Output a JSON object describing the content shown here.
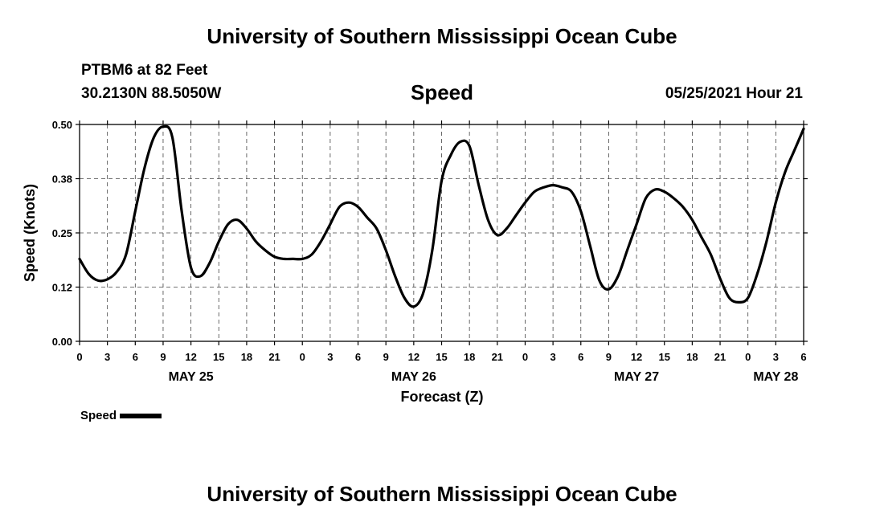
{
  "header": {
    "title": "University of Southern Mississippi Ocean Cube",
    "station": "PTBM6 at 82 Feet",
    "coords": "30.2130N  88.5050W",
    "chart_title": "Speed",
    "run_time": "05/25/2021 Hour 21"
  },
  "footer": {
    "title": "University of Southern Mississippi Ocean Cube"
  },
  "legend": {
    "label": "Speed"
  },
  "chart_data": {
    "type": "line",
    "title": "Speed",
    "xlabel": "Forecast (Z)",
    "ylabel": "Speed (Knots)",
    "ylim": [
      0,
      0.5
    ],
    "y_ticks": [
      "0.00",
      "0.12",
      "0.25",
      "0.38",
      "0.50"
    ],
    "x_range_hours": [
      0,
      78
    ],
    "x_tick_labels": [
      "0",
      "3",
      "6",
      "9",
      "12",
      "15",
      "18",
      "21",
      "0",
      "3",
      "6",
      "9",
      "12",
      "15",
      "18",
      "21",
      "0",
      "3",
      "6",
      "9",
      "12",
      "15",
      "18",
      "21",
      "0",
      "3",
      "6"
    ],
    "days": [
      {
        "label": "MAY 25",
        "hour": 12
      },
      {
        "label": "MAY 26",
        "hour": 36
      },
      {
        "label": "MAY 27",
        "hour": 60
      },
      {
        "label": "MAY 28",
        "hour": 75
      }
    ],
    "grid": true,
    "series": [
      {
        "name": "Speed",
        "color": "#000000",
        "x_hours": [
          0,
          1,
          2,
          3,
          4,
          5,
          6,
          7,
          8,
          9,
          10,
          11,
          12,
          13,
          14,
          15,
          16,
          17,
          18,
          19,
          20,
          21,
          22,
          23,
          24,
          25,
          26,
          27,
          28,
          29,
          30,
          31,
          32,
          33,
          34,
          35,
          36,
          37,
          38,
          39,
          40,
          41,
          42,
          43,
          44,
          45,
          46,
          47,
          48,
          49,
          50,
          51,
          52,
          53,
          54,
          55,
          56,
          57,
          58,
          59,
          60,
          61,
          62,
          63,
          64,
          65,
          66,
          67,
          68,
          69,
          70,
          71,
          72,
          73,
          74,
          75,
          76,
          77,
          78
        ],
        "values": [
          0.19,
          0.155,
          0.14,
          0.143,
          0.16,
          0.2,
          0.3,
          0.4,
          0.47,
          0.495,
          0.47,
          0.3,
          0.17,
          0.15,
          0.18,
          0.23,
          0.27,
          0.28,
          0.26,
          0.23,
          0.21,
          0.195,
          0.19,
          0.19,
          0.19,
          0.2,
          0.23,
          0.27,
          0.31,
          0.32,
          0.31,
          0.285,
          0.26,
          0.21,
          0.15,
          0.1,
          0.08,
          0.11,
          0.21,
          0.37,
          0.43,
          0.46,
          0.45,
          0.36,
          0.28,
          0.245,
          0.26,
          0.29,
          0.32,
          0.345,
          0.355,
          0.36,
          0.355,
          0.345,
          0.3,
          0.22,
          0.14,
          0.12,
          0.15,
          0.21,
          0.27,
          0.33,
          0.35,
          0.345,
          0.33,
          0.31,
          0.28,
          0.24,
          0.2,
          0.145,
          0.1,
          0.09,
          0.1,
          0.155,
          0.23,
          0.32,
          0.39,
          0.44,
          0.49
        ]
      }
    ]
  }
}
